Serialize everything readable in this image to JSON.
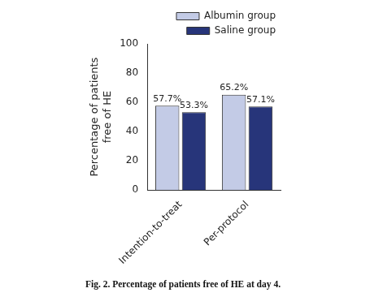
{
  "chart_data": {
    "type": "bar",
    "title": "Fig. 2. Percentage of patients free of HE at day 4.",
    "y_label": "Percentage of patients free of HE",
    "categories": [
      "Intention-to-treat",
      "Per-protocol"
    ],
    "series": [
      {
        "name": "Albumin group",
        "color": "#c3cbe6",
        "values": [
          57.7,
          65.2
        ],
        "value_labels": [
          "57.7%",
          "65.2%"
        ]
      },
      {
        "name": "Saline group",
        "color": "#27357a",
        "values": [
          53.3,
          57.1
        ],
        "value_labels": [
          "53.3%",
          "57.1%"
        ]
      }
    ],
    "ylim": [
      0,
      100
    ],
    "yticks": [
      0,
      20,
      40,
      60,
      80,
      100
    ],
    "grid": false,
    "legend": "top-right",
    "data_labels": true
  }
}
